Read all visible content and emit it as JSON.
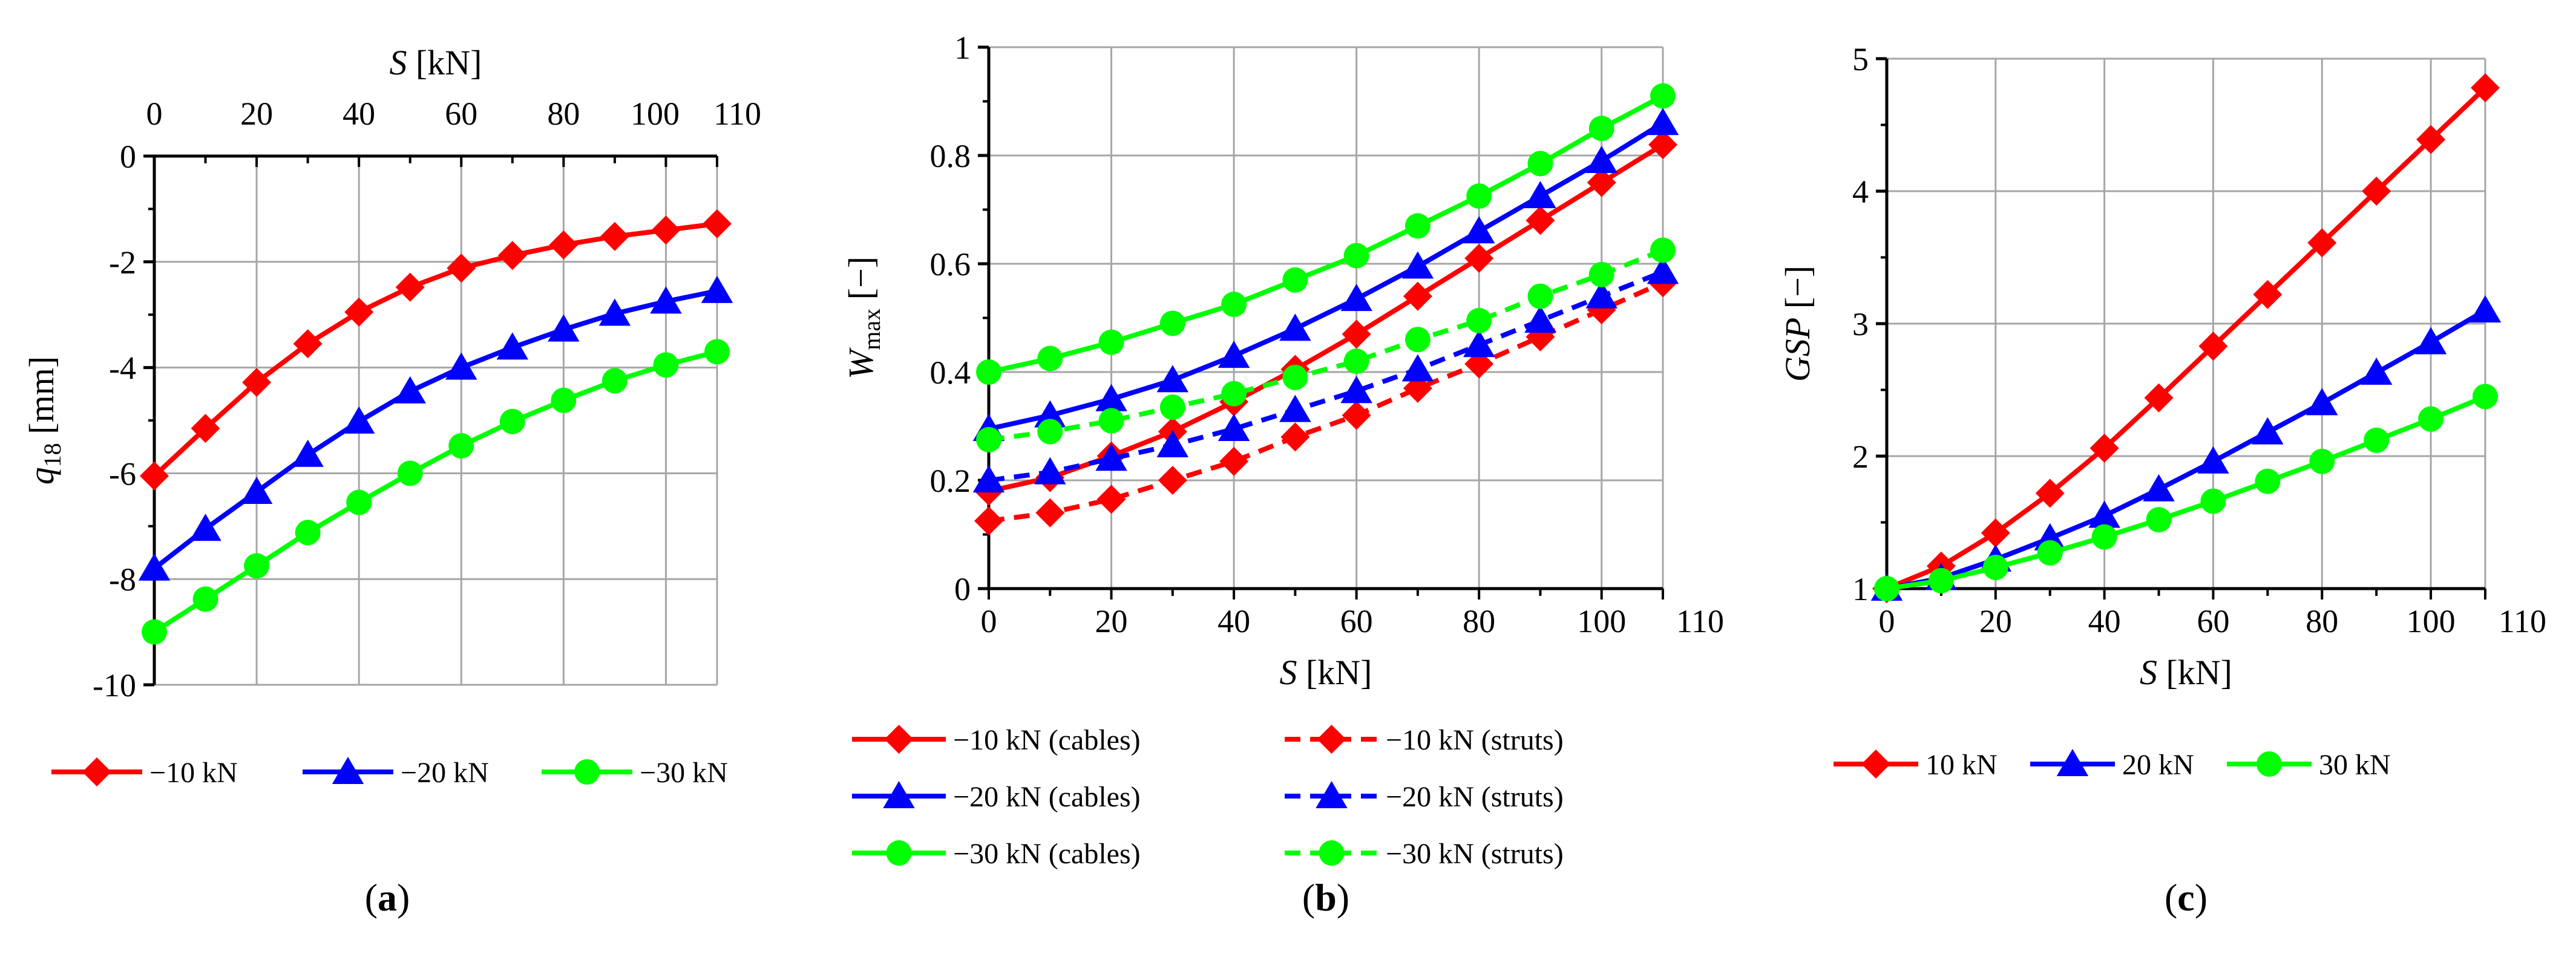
{
  "chart_data": [
    {
      "id": "a",
      "type": "line",
      "panel_label": "a",
      "xlabel": "S [kN]",
      "xlabel_var": "S",
      "xlabel_unit": " [kN]",
      "ylabel": "q18 [mm]",
      "ylabel_var": "q",
      "ylabel_sub": "18",
      "ylabel_unit": " [mm]",
      "xlim": [
        0,
        110
      ],
      "ylim": [
        -10,
        0
      ],
      "x_ticks": [
        0,
        20,
        40,
        60,
        80,
        100,
        110
      ],
      "x_tick_labels": [
        "0",
        "20",
        "40",
        "60",
        "80",
        "100",
        "110"
      ],
      "y_ticks": [
        0,
        -2,
        -4,
        -6,
        -8,
        -10
      ],
      "y_tick_labels": [
        "0",
        "-2",
        "-4",
        "-6",
        "-8",
        "-10"
      ],
      "x_axis_position": "top",
      "grid": true,
      "legend_position": "bottom",
      "x": [
        0,
        10,
        20,
        30,
        40,
        50,
        60,
        70,
        80,
        90,
        100,
        110
      ],
      "series": [
        {
          "name": "−10 kN",
          "color": "#ff0000",
          "marker": "diamond",
          "dash": "solid",
          "values": [
            -6.05,
            -5.15,
            -4.28,
            -3.55,
            -2.95,
            -2.48,
            -2.12,
            -1.88,
            -1.68,
            -1.52,
            -1.4,
            -1.28
          ]
        },
        {
          "name": "−20 kN",
          "color": "#0000ff",
          "marker": "triangle",
          "dash": "solid",
          "values": [
            -7.8,
            -7.05,
            -6.35,
            -5.65,
            -5.02,
            -4.45,
            -4.0,
            -3.62,
            -3.28,
            -2.98,
            -2.75,
            -2.55
          ]
        },
        {
          "name": "−30 kN",
          "color": "#00ff00",
          "marker": "circle",
          "dash": "solid",
          "values": [
            -9.0,
            -8.38,
            -7.75,
            -7.12,
            -6.55,
            -6.0,
            -5.48,
            -5.02,
            -4.62,
            -4.25,
            -3.95,
            -3.7
          ]
        }
      ]
    },
    {
      "id": "b",
      "type": "line",
      "panel_label": "b",
      "xlabel": "S [kN]",
      "xlabel_var": "S",
      "xlabel_unit": " [kN]",
      "ylabel": "Wmax [−]",
      "ylabel_var": "W",
      "ylabel_sub": "max",
      "ylabel_unit": " [−]",
      "xlim": [
        0,
        110
      ],
      "ylim": [
        0,
        1
      ],
      "x_ticks": [
        0,
        20,
        40,
        60,
        80,
        100,
        110
      ],
      "x_tick_labels": [
        "0",
        "20",
        "40",
        "60",
        "80",
        "100",
        "110"
      ],
      "y_ticks": [
        0,
        0.2,
        0.4,
        0.6,
        0.8,
        1
      ],
      "y_tick_labels": [
        "0",
        "0.2",
        "0.4",
        "0.6",
        "0.8",
        "1"
      ],
      "x_axis_position": "bottom",
      "grid": true,
      "legend_position": "bottom",
      "x": [
        0,
        10,
        20,
        30,
        40,
        50,
        60,
        70,
        80,
        90,
        100,
        110
      ],
      "series": [
        {
          "name": "−10 kN (cables)",
          "color": "#ff0000",
          "marker": "diamond",
          "dash": "solid",
          "values": [
            0.18,
            0.205,
            0.245,
            0.29,
            0.345,
            0.405,
            0.47,
            0.54,
            0.61,
            0.68,
            0.75,
            0.82
          ]
        },
        {
          "name": "−10 kN (struts)",
          "color": "#ff0000",
          "marker": "diamond",
          "dash": "dashed",
          "values": [
            0.125,
            0.14,
            0.165,
            0.2,
            0.235,
            0.28,
            0.32,
            0.37,
            0.415,
            0.465,
            0.515,
            0.565
          ]
        },
        {
          "name": "−20 kN (cables)",
          "color": "#0000ff",
          "marker": "triangle",
          "dash": "solid",
          "values": [
            0.295,
            0.32,
            0.35,
            0.385,
            0.43,
            0.48,
            0.535,
            0.595,
            0.66,
            0.725,
            0.79,
            0.86
          ]
        },
        {
          "name": "−20 kN (struts)",
          "color": "#0000ff",
          "marker": "triangle",
          "dash": "dashed",
          "values": [
            0.2,
            0.215,
            0.24,
            0.265,
            0.295,
            0.33,
            0.365,
            0.405,
            0.45,
            0.495,
            0.54,
            0.585
          ]
        },
        {
          "name": "−30 kN (cables)",
          "color": "#00ff00",
          "marker": "circle",
          "dash": "solid",
          "values": [
            0.4,
            0.425,
            0.455,
            0.49,
            0.525,
            0.57,
            0.615,
            0.67,
            0.725,
            0.785,
            0.85,
            0.91
          ]
        },
        {
          "name": "−30 kN (struts)",
          "color": "#00ff00",
          "marker": "circle",
          "dash": "dashed",
          "values": [
            0.275,
            0.29,
            0.31,
            0.335,
            0.36,
            0.39,
            0.42,
            0.46,
            0.495,
            0.54,
            0.58,
            0.625
          ]
        }
      ]
    },
    {
      "id": "c",
      "type": "line",
      "panel_label": "c",
      "xlabel": "S [kN]",
      "xlabel_var": "S",
      "xlabel_unit": " [kN]",
      "ylabel": "GSP [−]",
      "ylabel_var": "GSP",
      "ylabel_sub": "",
      "ylabel_unit": " [−]",
      "xlim": [
        0,
        110
      ],
      "ylim": [
        1,
        5
      ],
      "x_ticks": [
        0,
        20,
        40,
        60,
        80,
        100,
        110
      ],
      "x_tick_labels": [
        "0",
        "20",
        "40",
        "60",
        "80",
        "100",
        "110"
      ],
      "y_ticks": [
        1,
        2,
        3,
        4,
        5
      ],
      "y_tick_labels": [
        "1",
        "2",
        "3",
        "4",
        "5"
      ],
      "x_axis_position": "bottom",
      "grid": true,
      "legend_position": "bottom",
      "x": [
        0,
        10,
        20,
        30,
        40,
        50,
        60,
        70,
        80,
        90,
        100,
        110
      ],
      "series": [
        {
          "name": "10 kN",
          "color": "#ff0000",
          "marker": "diamond",
          "dash": "solid",
          "values": [
            1.0,
            1.17,
            1.42,
            1.72,
            2.06,
            2.44,
            2.83,
            3.22,
            3.61,
            4.0,
            4.39,
            4.78
          ]
        },
        {
          "name": "20 kN",
          "color": "#0000ff",
          "marker": "triangle",
          "dash": "solid",
          "values": [
            1.0,
            1.08,
            1.22,
            1.38,
            1.55,
            1.75,
            1.96,
            2.18,
            2.4,
            2.63,
            2.86,
            3.1
          ]
        },
        {
          "name": "30 kN",
          "color": "#00ff00",
          "marker": "circle",
          "dash": "solid",
          "values": [
            1.0,
            1.06,
            1.16,
            1.27,
            1.39,
            1.52,
            1.66,
            1.81,
            1.96,
            2.12,
            2.28,
            2.45
          ]
        }
      ]
    }
  ]
}
